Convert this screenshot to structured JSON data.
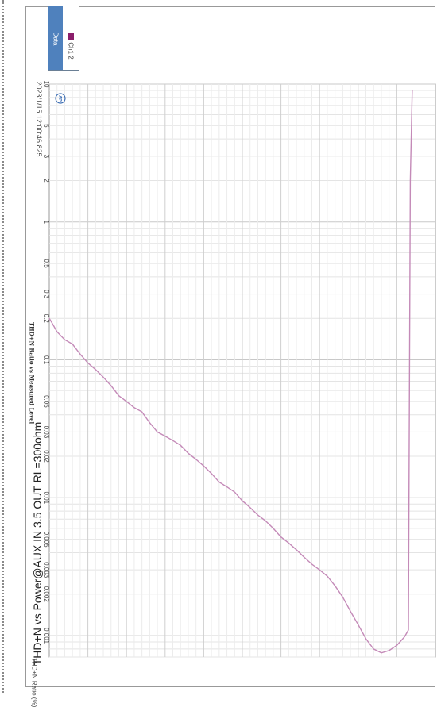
{
  "page_title": "THD+N vs Power@AUX IN 3.5 OUT RL=300ohm",
  "subtitle": "THD+N Ratio vs Measured Level",
  "timestamp": "2023/1/15 12:00:46.825",
  "logo_text": "AP",
  "legend": {
    "header": "Data",
    "entries": [
      {
        "name": "Ch1 2",
        "color": "#8b1e6b"
      }
    ]
  },
  "chart_data": {
    "type": "line",
    "title": "THD+N vs Power@AUX IN 3.5 OUT RL=300ohm",
    "subtitle": "THD+N Ratio vs Measured Level",
    "ylabel": "THD+N Ratio (%)",
    "xlabel": "",
    "y_scale": "log",
    "ylim": [
      0.0007,
      10
    ],
    "y_ticks": [
      "10",
      "5",
      "3",
      "2",
      "1",
      "0.5",
      "0.3",
      "0.2",
      "0.1",
      "0.05",
      "0.03",
      "0.02",
      "0.01",
      "0.005",
      "0.003",
      "0.002",
      "0.001"
    ],
    "y_tick_values": [
      10,
      5,
      3,
      2,
      1,
      0.5,
      0.3,
      0.2,
      0.1,
      0.05,
      0.03,
      0.02,
      0.01,
      0.005,
      0.003,
      0.002,
      0.001
    ],
    "grid": true,
    "legend_position": "top-left",
    "series": [
      {
        "name": "Ch1 2",
        "color": "#c48ab8",
        "x": [
          0,
          0.5,
          2,
          4,
          6,
          8,
          10,
          12,
          14,
          16,
          18,
          20,
          22,
          24,
          26,
          28,
          30,
          32,
          34,
          36,
          38,
          40,
          42,
          44,
          46,
          48,
          50,
          52,
          54,
          56,
          58,
          60,
          62,
          64,
          66,
          68,
          70,
          72,
          74,
          76,
          78,
          80,
          82,
          84,
          86,
          88,
          90,
          92,
          93,
          93.5,
          94
        ],
        "y": [
          0.2,
          0.19,
          0.16,
          0.14,
          0.13,
          0.11,
          0.095,
          0.085,
          0.075,
          0.065,
          0.055,
          0.05,
          0.045,
          0.042,
          0.035,
          0.03,
          0.028,
          0.026,
          0.024,
          0.021,
          0.019,
          0.017,
          0.015,
          0.013,
          0.012,
          0.011,
          0.0095,
          0.0085,
          0.0075,
          0.0068,
          0.006,
          0.0052,
          0.0047,
          0.0042,
          0.0037,
          0.0033,
          0.003,
          0.0027,
          0.0023,
          0.0019,
          0.0015,
          0.0012,
          0.00095,
          0.0008,
          0.00075,
          0.00078,
          0.00085,
          0.00098,
          0.0011,
          2,
          9
        ]
      }
    ]
  }
}
